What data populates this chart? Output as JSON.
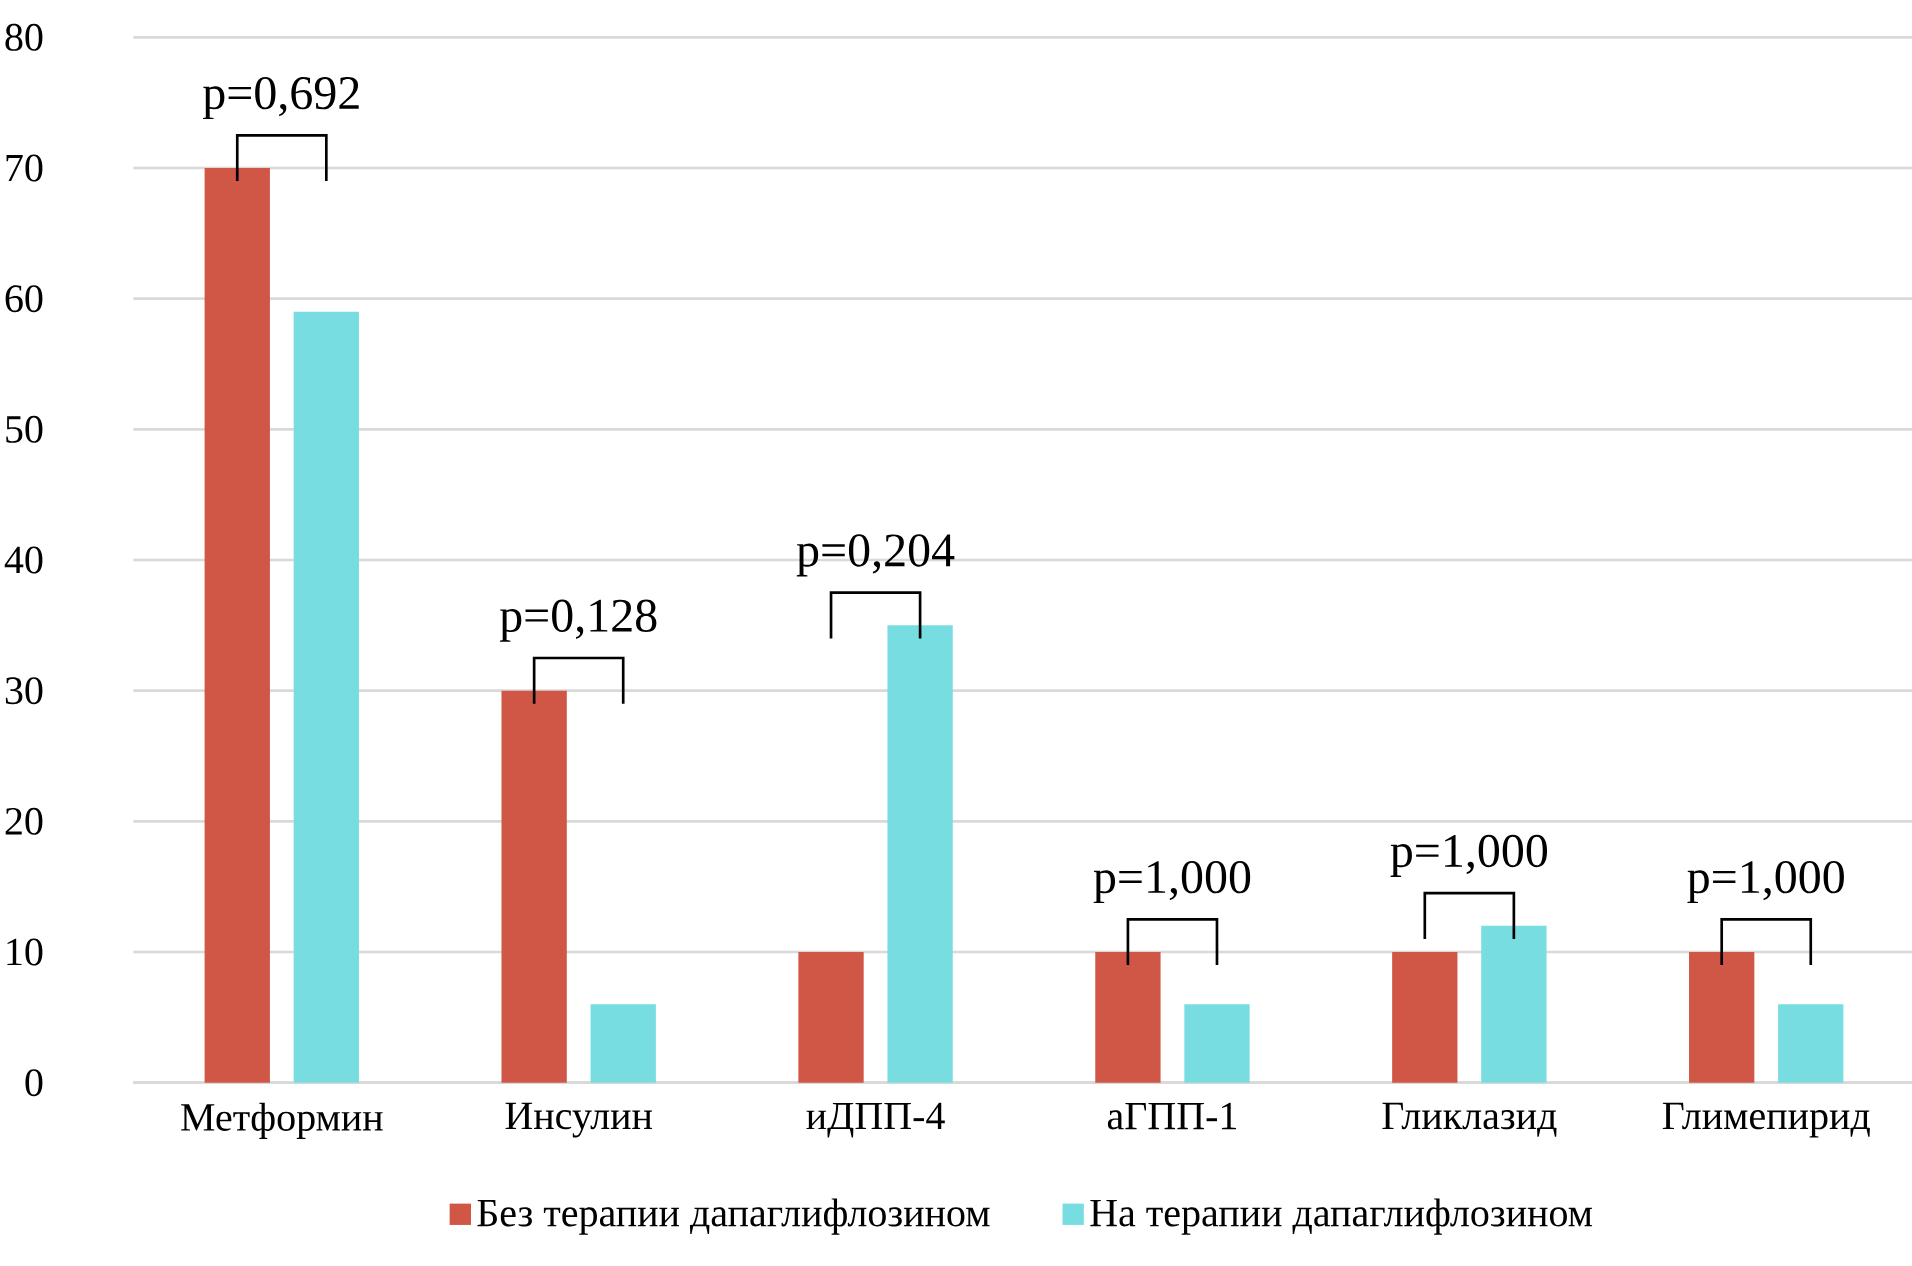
{
  "chart_data": {
    "type": "bar",
    "categories": [
      "Метформин",
      "Инсулин",
      "иДПП-4",
      "аГПП-1",
      "Гликлазид",
      "Глимепирид"
    ],
    "series": [
      {
        "name": "Без терапии дапаглифлозином",
        "color": "#d05745",
        "values": [
          70,
          30,
          10,
          10,
          10,
          10
        ]
      },
      {
        "name": "На терапии дапаглифлозином",
        "color": "#78dde1",
        "values": [
          59,
          6,
          35,
          6,
          12,
          6
        ]
      }
    ],
    "annotations": [
      "p=0,692",
      "p=0,128",
      "p=0,204",
      "p=1,000",
      "p=1,000",
      "p=1,000"
    ],
    "ylim": [
      0,
      80
    ],
    "yticks": [
      0,
      10,
      20,
      30,
      40,
      50,
      60,
      70,
      80
    ],
    "grid": "y",
    "legend": "bottom"
  }
}
